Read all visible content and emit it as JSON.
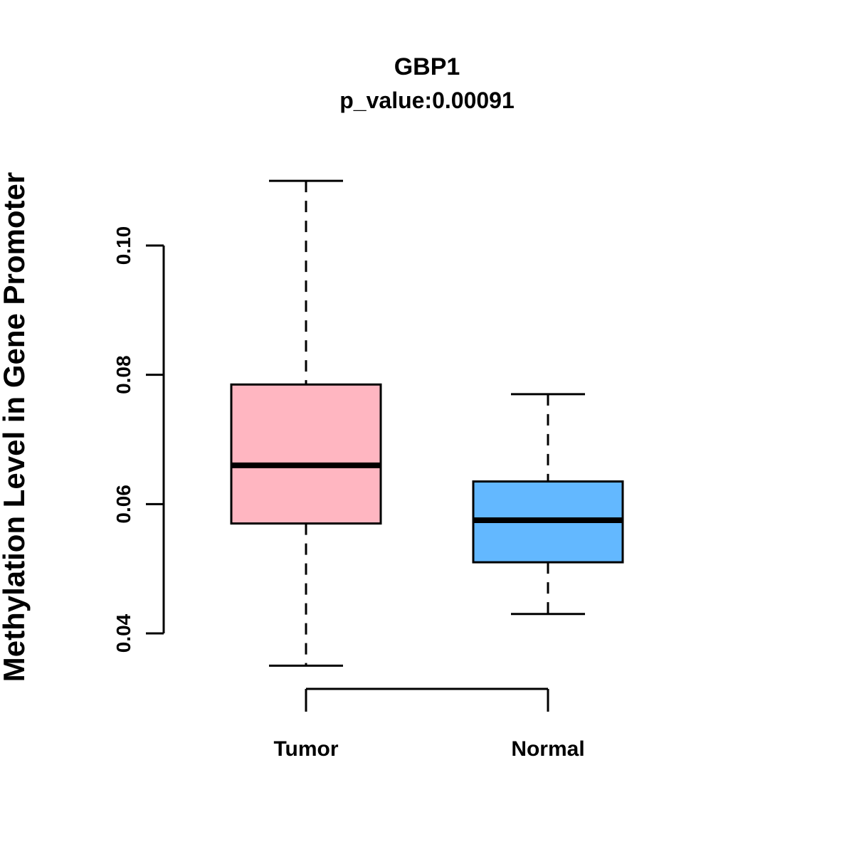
{
  "chart_data": {
    "type": "boxplot",
    "title": "GBP1",
    "subtitle": "p_value:0.00091",
    "ylabel": "Methylation Level in Gene Promoter",
    "xlabel": "",
    "categories": [
      "Tumor",
      "Normal"
    ],
    "y_ticks": [
      0.04,
      0.06,
      0.08,
      0.1
    ],
    "ylim": [
      0.035,
      0.11
    ],
    "grid": false,
    "legend": "none",
    "series": [
      {
        "name": "Tumor",
        "color": "#FFB6C1",
        "whisker_low": 0.035,
        "q1": 0.057,
        "median": 0.066,
        "q3": 0.0785,
        "whisker_high": 0.11
      },
      {
        "name": "Normal",
        "color": "#63B8FF",
        "whisker_low": 0.043,
        "q1": 0.051,
        "median": 0.0575,
        "q3": 0.0635,
        "whisker_high": 0.077
      }
    ],
    "colors": {
      "stroke": "#000000",
      "tumor_fill": "#FFB6C1",
      "normal_fill": "#63B8FF"
    }
  }
}
